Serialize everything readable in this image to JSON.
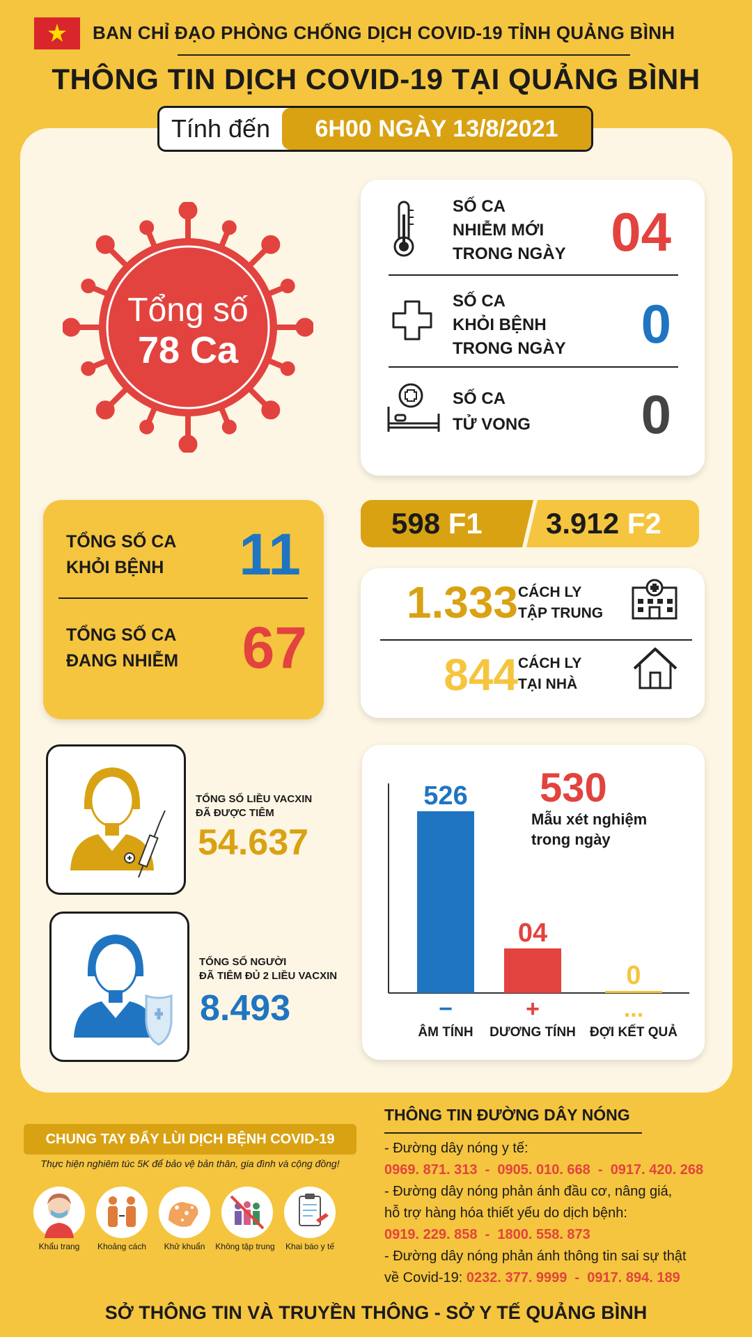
{
  "header": {
    "org": "BAN CHỈ ĐẠO PHÒNG CHỐNG DỊCH COVID-19 TỈNH QUẢNG BÌNH",
    "title": "THÔNG TIN DỊCH COVID-19 TẠI QUẢNG BÌNH",
    "date_prefix": "Tính đến",
    "date_value": "6H00 NGÀY 13/8/2021"
  },
  "total": {
    "line1": "Tổng số",
    "line2": "78 Ca"
  },
  "daily": {
    "new_label": [
      "SỐ CA",
      "NHIỄM MỚI",
      "TRONG NGÀY"
    ],
    "new_value": "04",
    "recovered_label": [
      "SỐ CA",
      "KHỎI BỆNH",
      "TRONG NGÀY"
    ],
    "recovered_value": "0",
    "deaths_label": [
      "SỐ CA",
      "TỬ VONG"
    ],
    "deaths_value": "0"
  },
  "totals": {
    "recovered_label": [
      "TỔNG SỐ CA",
      "KHỎI BỆNH"
    ],
    "recovered_value": "11",
    "active_label": [
      "TỔNG SỐ CA",
      "ĐANG NHIỄM"
    ],
    "active_value": "67"
  },
  "contacts": {
    "f1_value": "598",
    "f1_label": "F1",
    "f2_value": "3.912",
    "f2_label": "F2"
  },
  "quarantine": {
    "central_value": "1.333",
    "central_label": [
      "CÁCH LY",
      "TẬP TRUNG"
    ],
    "home_value": "844",
    "home_label": [
      "CÁCH LY",
      "TẠI NHÀ"
    ]
  },
  "vaccine": {
    "doses_label": [
      "TỔNG SỐ LIỀU VACXIN",
      "ĐÃ ĐƯỢC TIÊM"
    ],
    "doses_value": "54.637",
    "full_label": [
      "TỔNG SỐ NGƯỜI",
      "ĐÃ TIÊM ĐỦ 2 LIỀU VACXIN"
    ],
    "full_value": "8.493"
  },
  "chart_data": {
    "type": "bar",
    "title_value": "530",
    "title": "Mẫu xét nghiệm trong ngày",
    "categories": [
      "ÂM TÍNH",
      "DƯƠNG TÍNH",
      "ĐỢI KẾT QUẢ"
    ],
    "value_labels": [
      "526",
      "04",
      "0"
    ],
    "values": [
      526,
      4,
      0
    ],
    "symbols": [
      "−",
      "+",
      "..."
    ],
    "colors": [
      "#1f75c1",
      "#e2433f",
      "#f5c53f"
    ]
  },
  "campaign": {
    "slogan": "CHUNG TAY ĐẨY LÙI DỊCH BỆNH COVID-19",
    "subtitle": "Thực hiện nghiêm túc 5K để bảo vệ bản thân, gia đình và cộng đồng!",
    "items": [
      "Khẩu trang",
      "Khoảng cách",
      "Khử khuẩn",
      "Không tập trung",
      "Khai báo y tế"
    ]
  },
  "hotline": {
    "title": "THÔNG TIN ĐƯỜNG DÂY NÓNG",
    "l1": "- Đường dây nóng y tế:",
    "l1_nums": "0969. 871. 313  -  0905. 010. 668  -  0917. 420. 268",
    "l2a": "- Đường dây nóng phản ánh đầu cơ, nâng giá,",
    "l2b": "hỗ trợ hàng hóa thiết yếu do dịch bệnh:",
    "l2_nums": "0919. 229. 858  -  1800. 558. 873",
    "l3a": "- Đường dây nóng phản ánh thông tin sai sự thật",
    "l3b": "về Covid-19: ",
    "l3_nums": "0232. 377. 9999  -  0917. 894. 189"
  },
  "footer": "SỞ THÔNG TIN VÀ TRUYỀN THÔNG - SỞ Y TẾ QUẢNG BÌNH"
}
